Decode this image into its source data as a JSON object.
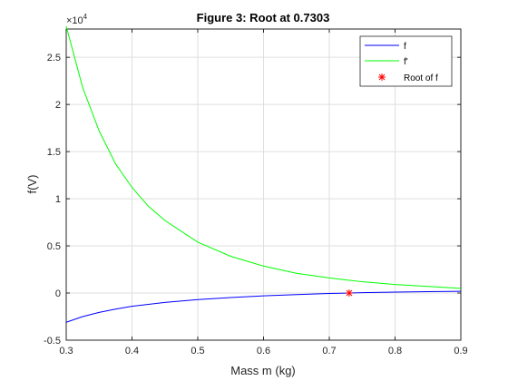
{
  "chart_data": {
    "type": "line",
    "title": "Figure 3: Root at 0.7303",
    "xlabel": "Mass m (kg)",
    "ylabel": "f(V)",
    "y_scale_exponent_label": "×10",
    "y_scale_exponent_power": "4",
    "xlim": [
      0.3,
      0.9
    ],
    "ylim": [
      -0.5,
      2.8
    ],
    "x_ticks": [
      0.3,
      0.4,
      0.5,
      0.6,
      0.7,
      0.8,
      0.9
    ],
    "x_tick_labels": [
      "0.3",
      "0.4",
      "0.5",
      "0.6",
      "0.7",
      "0.8",
      "0.9"
    ],
    "y_ticks": [
      -0.5,
      0,
      0.5,
      1,
      1.5,
      2,
      2.5
    ],
    "y_tick_labels": [
      "-0.5",
      "0",
      "0.5",
      "1",
      "1.5",
      "2",
      "2.5"
    ],
    "grid": true,
    "legend_position": "top-right",
    "series": [
      {
        "name": "f",
        "color": "#0000ff",
        "marker": "line",
        "x": [
          0.3,
          0.325,
          0.35,
          0.375,
          0.4,
          0.45,
          0.5,
          0.55,
          0.6,
          0.65,
          0.7,
          0.73,
          0.75,
          0.8,
          0.85,
          0.9
        ],
        "y": [
          -0.31,
          -0.25,
          -0.205,
          -0.17,
          -0.14,
          -0.1,
          -0.07,
          -0.048,
          -0.03,
          -0.016,
          -0.005,
          0.0,
          0.004,
          0.01,
          0.015,
          0.018
        ]
      },
      {
        "name": "f'",
        "color": "#00ff00",
        "marker": "line",
        "x": [
          0.3,
          0.325,
          0.35,
          0.375,
          0.4,
          0.425,
          0.45,
          0.5,
          0.55,
          0.6,
          0.65,
          0.7,
          0.75,
          0.8,
          0.85,
          0.9
        ],
        "y": [
          2.83,
          2.18,
          1.72,
          1.37,
          1.12,
          0.92,
          0.77,
          0.54,
          0.39,
          0.285,
          0.21,
          0.16,
          0.12,
          0.09,
          0.07,
          0.05
        ]
      },
      {
        "name": "Root of f",
        "color": "#ff0000",
        "marker": "asterisk",
        "x": [
          0.7303
        ],
        "y": [
          0
        ]
      }
    ]
  }
}
